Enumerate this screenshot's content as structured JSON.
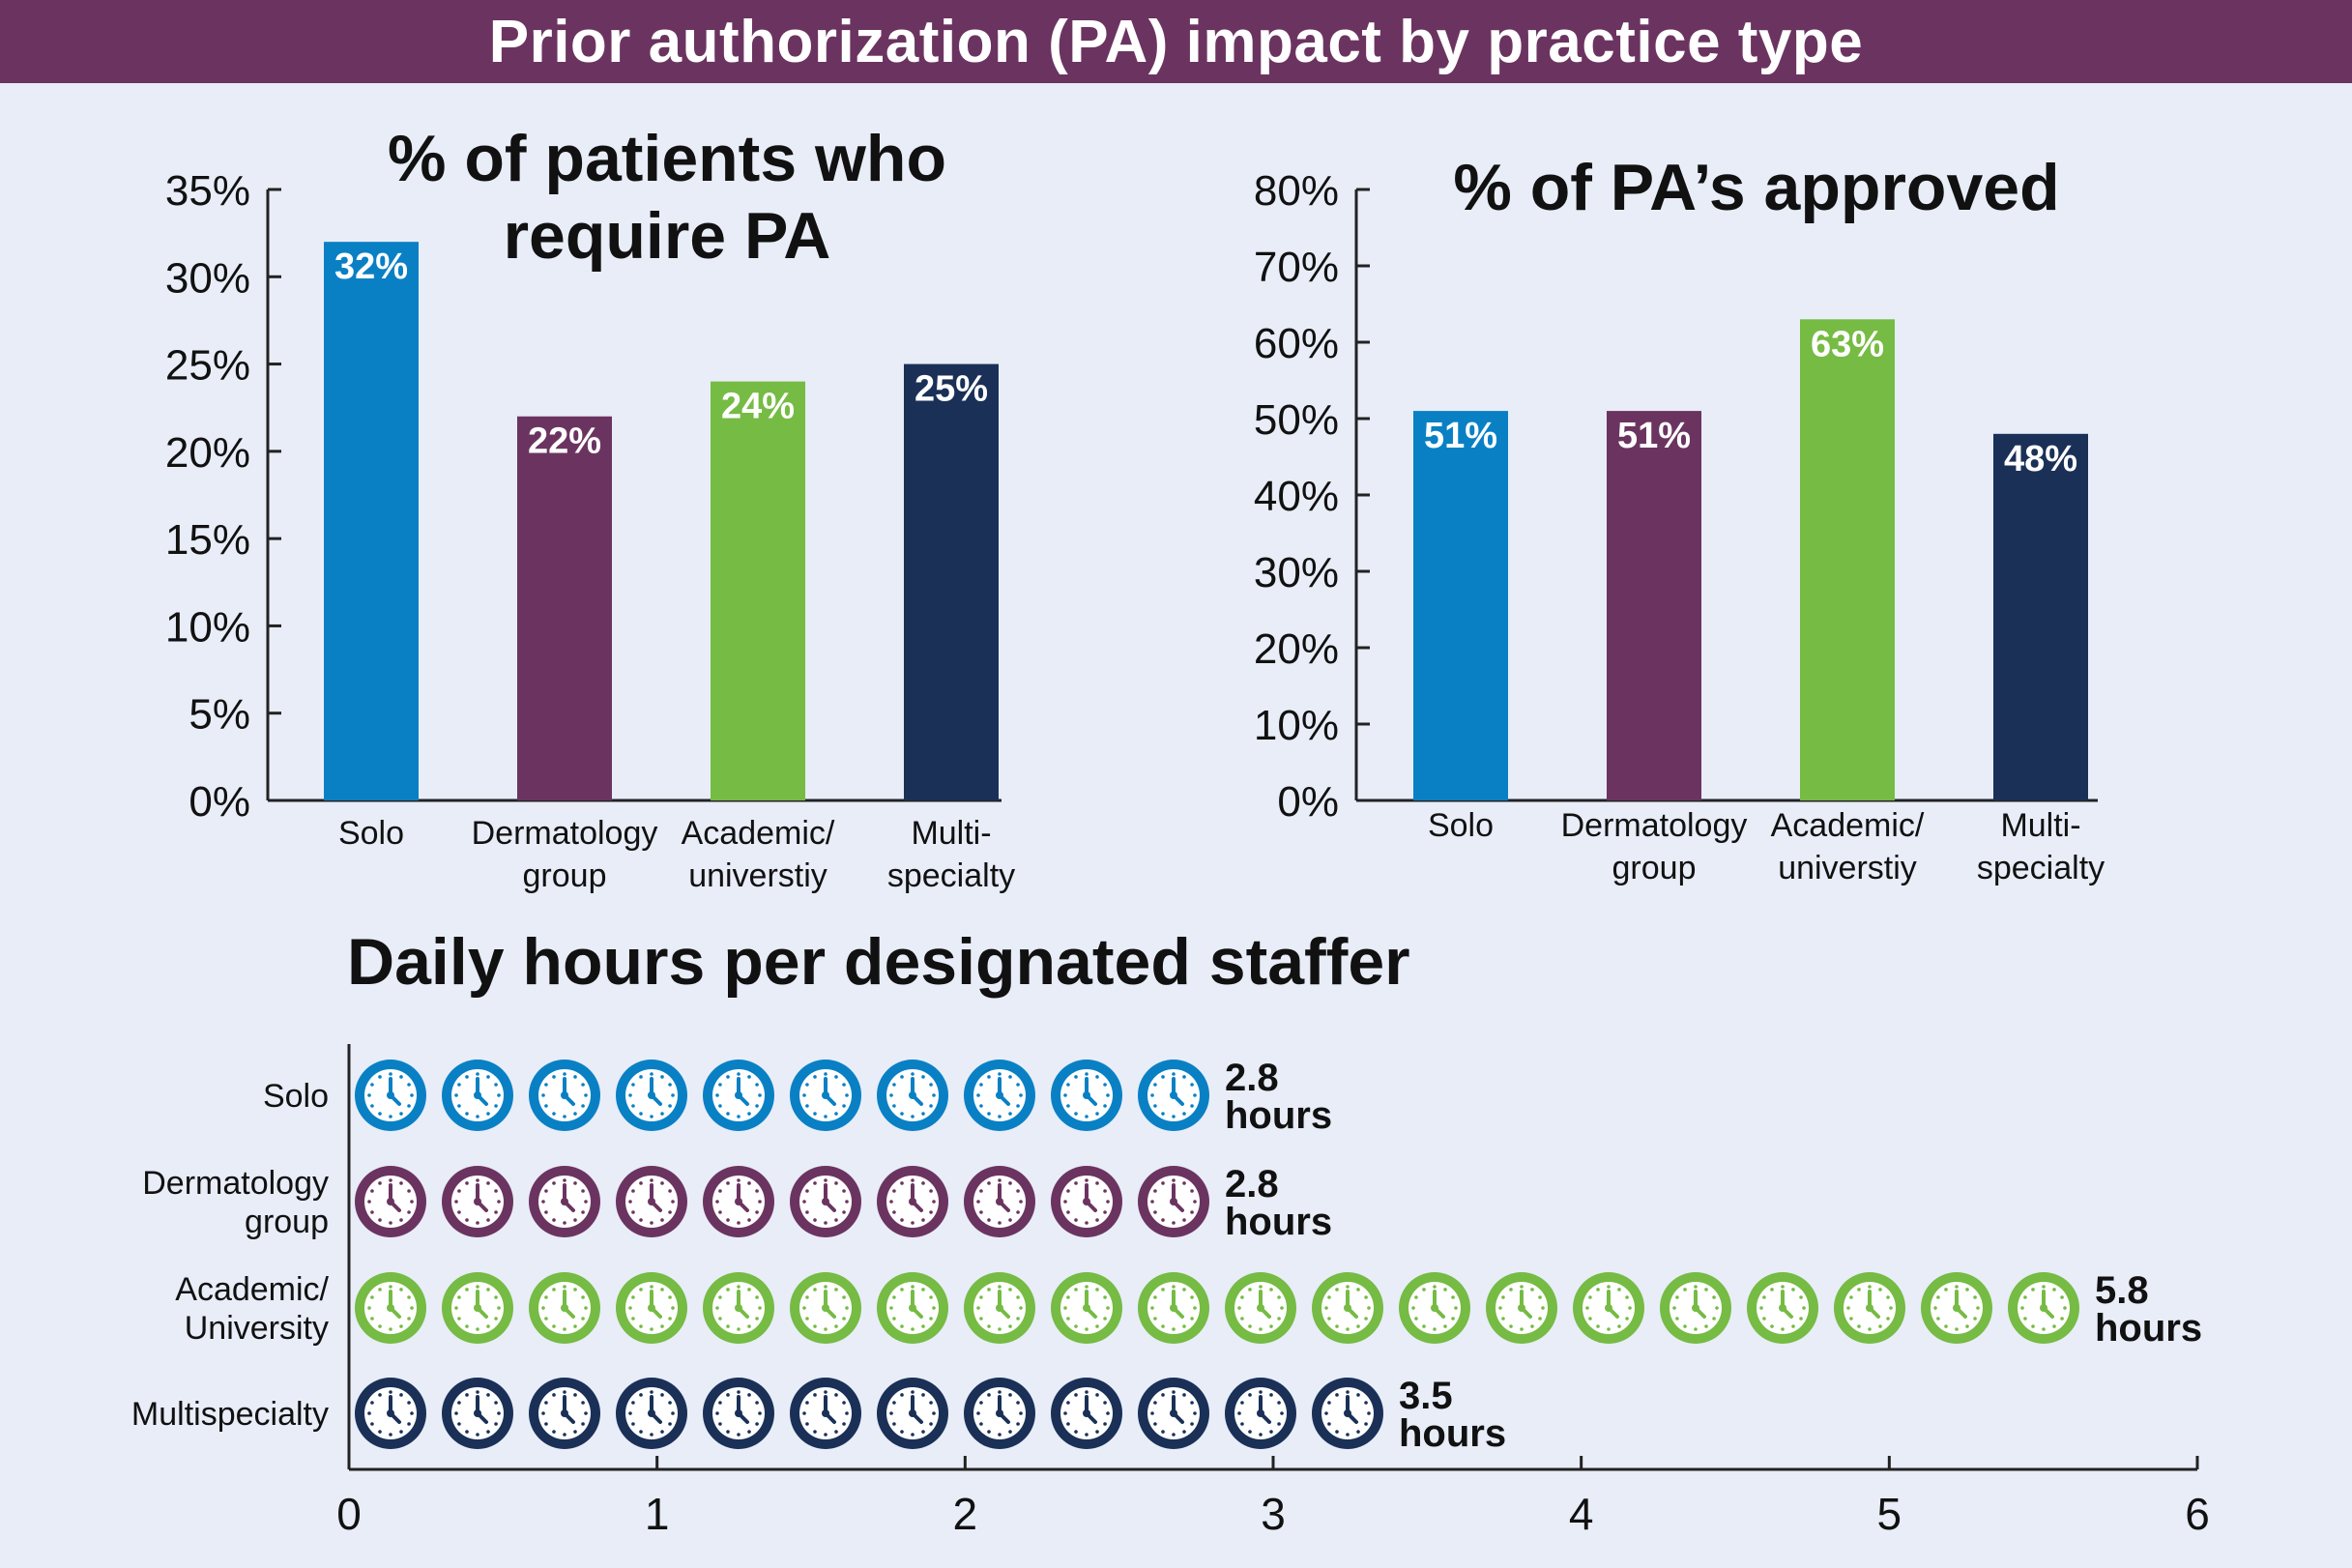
{
  "page": {
    "title": "Prior authorization (PA) impact by practice type"
  },
  "colors": {
    "banner": "#6b3460",
    "background": "#e8edf8",
    "solo": "#0a80c4",
    "dermatology_group": "#6b3460",
    "academic": "#76bb44",
    "multispecialty": "#1a3057"
  },
  "chart_data": [
    {
      "type": "bar",
      "title": "% of patients who require PA",
      "title_lines": [
        "% of patients who",
        "require PA"
      ],
      "categories": [
        "Solo",
        "Dermatology group",
        "Academic/ universtiy",
        "Multi- specialty"
      ],
      "category_lines": [
        [
          "Solo"
        ],
        [
          "Dermatology",
          "group"
        ],
        [
          "Academic/",
          "universtiy"
        ],
        [
          "Multi-",
          "specialty"
        ]
      ],
      "values": [
        32,
        22,
        24,
        25
      ],
      "value_labels": [
        "32%",
        "22%",
        "24%",
        "25%"
      ],
      "ylim": [
        0,
        35
      ],
      "yticks": [
        0,
        5,
        10,
        15,
        20,
        25,
        30,
        35
      ],
      "ytick_labels": [
        "0%",
        "5%",
        "10%",
        "15%",
        "20%",
        "25%",
        "30%",
        "35%"
      ],
      "grid": false
    },
    {
      "type": "bar",
      "title": "% of PA’s approved",
      "title_lines": [
        "% of PA’s approved"
      ],
      "categories": [
        "Solo",
        "Dermatology group",
        "Academic/ universtiy",
        "Multi- specialty"
      ],
      "category_lines": [
        [
          "Solo"
        ],
        [
          "Dermatology",
          "group"
        ],
        [
          "Academic/",
          "universtiy"
        ],
        [
          "Multi-",
          "specialty"
        ]
      ],
      "values": [
        51,
        51,
        63,
        48
      ],
      "value_labels": [
        "51%",
        "51%",
        "63%",
        "48%"
      ],
      "ylim": [
        0,
        80
      ],
      "yticks": [
        0,
        10,
        20,
        30,
        40,
        50,
        60,
        70,
        80
      ],
      "ytick_labels": [
        "0%",
        "10%",
        "20%",
        "30%",
        "40%",
        "50%",
        "60%",
        "70%",
        "80%"
      ],
      "grid": false
    },
    {
      "type": "bar",
      "orientation": "horizontal",
      "pictograph": "clock-icon",
      "title": "Daily hours per designated staffer",
      "categories": [
        "Solo",
        "Dermatology group",
        "Academic/ University",
        "Multispecialty"
      ],
      "category_lines": [
        [
          "Solo"
        ],
        [
          "Dermatology",
          "group"
        ],
        [
          "Academic/",
          "University"
        ],
        [
          "Multispecialty"
        ]
      ],
      "values": [
        2.8,
        2.8,
        5.8,
        3.5
      ],
      "value_labels": [
        [
          "2.8",
          "hours"
        ],
        [
          "2.8",
          "hours"
        ],
        [
          "5.8",
          "hours"
        ],
        [
          "3.5",
          "hours"
        ]
      ],
      "xlim": [
        0,
        6
      ],
      "xticks": [
        0,
        1,
        2,
        3,
        4,
        5,
        6
      ],
      "xtick_labels": [
        "0",
        "1",
        "2",
        "3",
        "4",
        "5",
        "6"
      ],
      "grid": false
    }
  ]
}
